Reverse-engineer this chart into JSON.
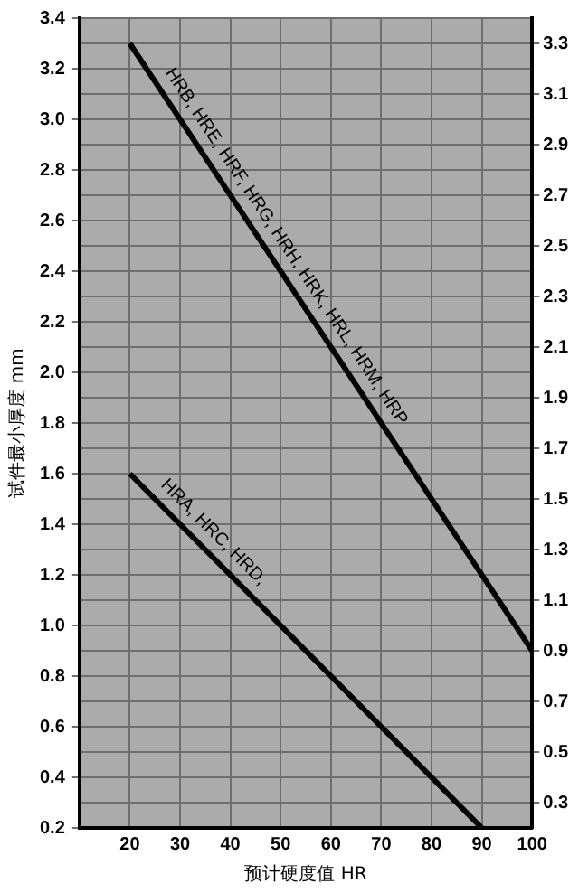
{
  "chart_data": {
    "type": "line",
    "xlabel": "预计硬度值 HR",
    "ylabel": "试件最小厚度 mm",
    "xlim": [
      10,
      100
    ],
    "xticks": [
      20,
      30,
      40,
      50,
      60,
      70,
      80,
      90,
      100
    ],
    "ylim": [
      0.2,
      3.4
    ],
    "yticks": [
      0.2,
      0.4,
      0.6,
      0.8,
      {
        "value": 1,
        "label": "1.0"
      },
      1.2,
      1.4,
      1.6,
      1.8,
      {
        "value": 2,
        "label": "2.0"
      },
      2.2,
      2.4,
      2.6,
      2.8,
      {
        "value": 3,
        "label": "3.0"
      },
      3.2,
      3.4
    ],
    "y2lim": [
      0.2,
      3.4
    ],
    "y2ticks": [
      0.3,
      0.5,
      0.7,
      0.9,
      1.1,
      1.3,
      1.5,
      1.7,
      1.9,
      2.1,
      2.3,
      2.5,
      2.7,
      2.9,
      3.1,
      3.3
    ],
    "grid": true,
    "legend": false,
    "marker": "none",
    "line_style": "solid",
    "series": [
      {
        "name": "HRB, HRE, HRF, HRG, HRH, HRK, HRL, HRM, HRP",
        "color": "#000000",
        "x": [
          20,
          100
        ],
        "values": [
          3.3,
          0.9
        ]
      },
      {
        "name": "HRA, HRC, HRD,",
        "color": "#000000",
        "x": [
          20,
          90
        ],
        "values": [
          1.6,
          0.2
        ]
      }
    ]
  }
}
